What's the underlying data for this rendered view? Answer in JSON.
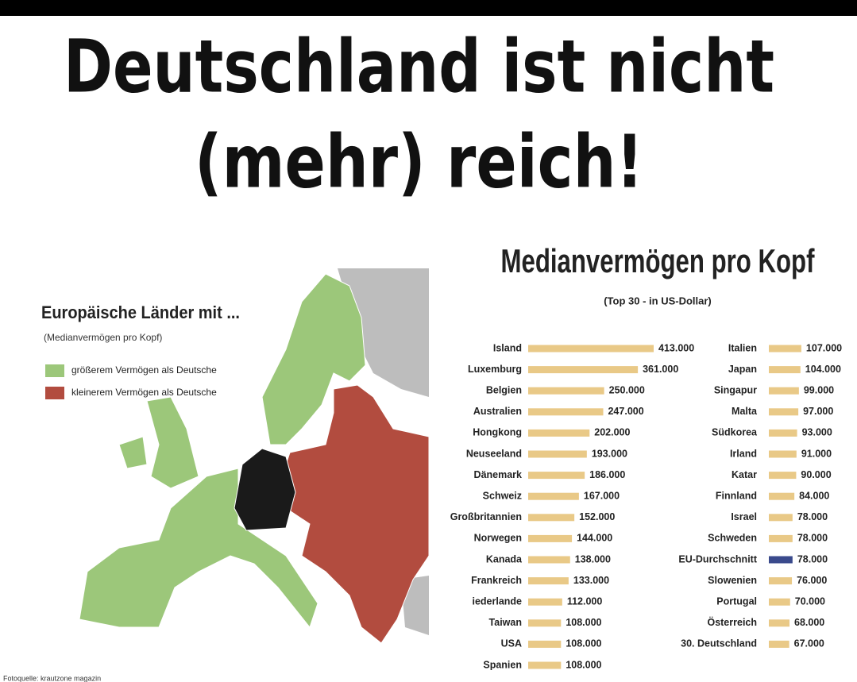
{
  "header": {
    "title_lines": [
      "Deutschland ist nicht",
      "(mehr) reich!"
    ]
  },
  "map": {
    "title": "Europäische Länder mit ...",
    "subtitle": "(Medianvermögen pro Kopf)",
    "legend": [
      {
        "label": "größerem Vermögen als Deutsche",
        "color": "#9cc77a"
      },
      {
        "label": "kleinerem Vermögen als Deutsche",
        "color": "#b24c3f"
      }
    ]
  },
  "chart_data": {
    "type": "bar",
    "title": "Medianvermögen pro Kopf",
    "subtitle": "(Top 30 - in US-Dollar)",
    "categories": [
      "Island",
      "Luxemburg",
      "Belgien",
      "Australien",
      "Hongkong",
      "Neuseeland",
      "Dänemark",
      "Schweiz",
      "Großbritannien",
      "Norwegen",
      "Kanada",
      "Frankreich",
      "iederlande",
      "Taiwan",
      "USA",
      "Spanien",
      "Italien",
      "Japan",
      "Singapur",
      "Malta",
      "Südkorea",
      "Irland",
      "Katar",
      "Finnland",
      "Israel",
      "Schweden",
      "EU-Durchschnitt",
      "Slowenien",
      "Portugal",
      "Österreich",
      "30. Deutschland"
    ],
    "values": [
      413000,
      361000,
      250000,
      247000,
      202000,
      193000,
      186000,
      167000,
      152000,
      144000,
      138000,
      133000,
      112000,
      108000,
      108000,
      108000,
      107000,
      104000,
      99000,
      97000,
      93000,
      91000,
      90000,
      84000,
      78000,
      78000,
      78000,
      76000,
      70000,
      68000,
      67000
    ],
    "value_labels": [
      "413.000",
      "361.000",
      "250.000",
      "247.000",
      "202.000",
      "193.000",
      "186.000",
      "167.000",
      "152.000",
      "144.000",
      "138.000",
      "133.000",
      "112.000",
      "108.000",
      "108.000",
      "108.000",
      "107.000",
      "104.000",
      "99.000",
      "97.000",
      "93.000",
      "91.000",
      "90.000",
      "84.000",
      "78.000",
      "78.000",
      "78.000",
      "76.000",
      "70.000",
      "68.000",
      "67.000"
    ],
    "colors": [
      "#e9c987",
      "#e9c987",
      "#e9c987",
      "#e9c987",
      "#e9c987",
      "#e9c987",
      "#e9c987",
      "#e9c987",
      "#e9c987",
      "#e9c987",
      "#e9c987",
      "#e9c987",
      "#e9c987",
      "#e9c987",
      "#e9c987",
      "#e9c987",
      "#e9c987",
      "#e9c987",
      "#e9c987",
      "#e9c987",
      "#e9c987",
      "#e9c987",
      "#e9c987",
      "#e9c987",
      "#e9c987",
      "#e9c987",
      "#3a4a8c",
      "#e9c987",
      "#e9c987",
      "#e9c987",
      "#e9c987"
    ]
  },
  "footer": {
    "source": "Fotoquelle: krautzone magazin"
  }
}
